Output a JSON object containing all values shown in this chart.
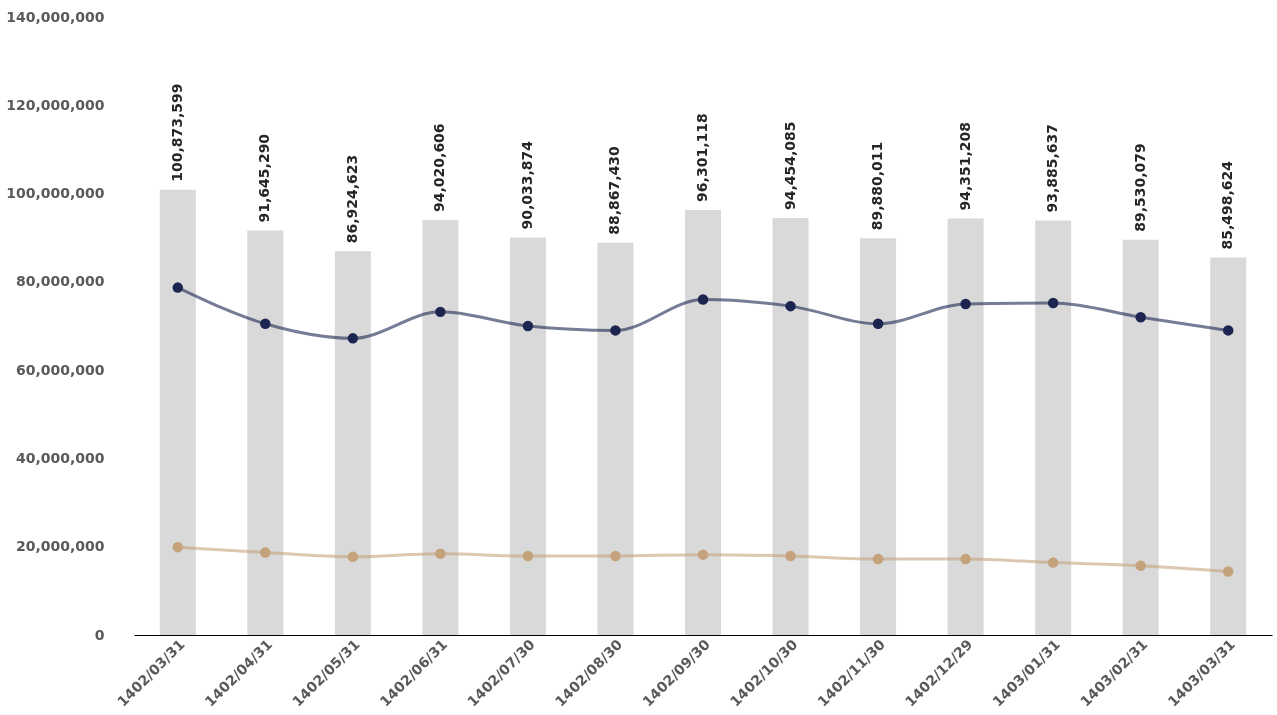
{
  "chart_data": {
    "type": "bar",
    "categories": [
      "1402/03/31",
      "1402/04/31",
      "1402/05/31",
      "1402/06/31",
      "1402/07/30",
      "1402/08/30",
      "1402/09/30",
      "1402/10/30",
      "1402/11/30",
      "1402/12/29",
      "1403/01/31",
      "1403/02/31",
      "1403/03/31"
    ],
    "series": [
      {
        "color": "#d9d9d9",
        "values": [
          100873599,
          91645290,
          86924623,
          94020606,
          90033874,
          88867430,
          96301118,
          94454085,
          89880011,
          94351208,
          93885637,
          89530079,
          85498624
        ],
        "value_labels": [
          "100,873,599",
          "91,645,290",
          "86,924,623",
          "94,020,606",
          "90,033,874",
          "88,867,430",
          "96,301,118",
          "94,454,085",
          "89,880,011",
          "94,351,208",
          "93,885,637",
          "89,530,079",
          "85,498,624"
        ]
      },
      {
        "type": "line",
        "color": "#1b2550",
        "marker": "circle",
        "line_style": "solid",
        "values": [
          78700000,
          70500000,
          67200000,
          73200000,
          70000000,
          69000000,
          76000000,
          74500000,
          70500000,
          75000000,
          75200000,
          72000000,
          69000000
        ]
      },
      {
        "type": "line",
        "color": "#c4a27c",
        "marker": "circle",
        "line_style": "solid",
        "values": [
          19900000,
          18700000,
          17700000,
          18400000,
          17900000,
          17900000,
          18200000,
          17900000,
          17200000,
          17200000,
          16400000,
          15700000,
          14400000
        ]
      }
    ],
    "ylim": [
      0,
      140000000
    ],
    "yticks": [
      0,
      {
        "value": 20000000,
        "label": "20,000,000"
      },
      {
        "value": 40000000,
        "label": "40,000,000"
      },
      {
        "value": 60000000,
        "label": "60,000,000"
      },
      {
        "value": 80000000,
        "label": "80,000,000"
      },
      {
        "value": 100000000,
        "label": "100,000,000"
      },
      {
        "value": 120000000,
        "label": "120,000,000"
      },
      {
        "value": 140000000,
        "label": "140,000,000"
      }
    ],
    "grid": false
  }
}
